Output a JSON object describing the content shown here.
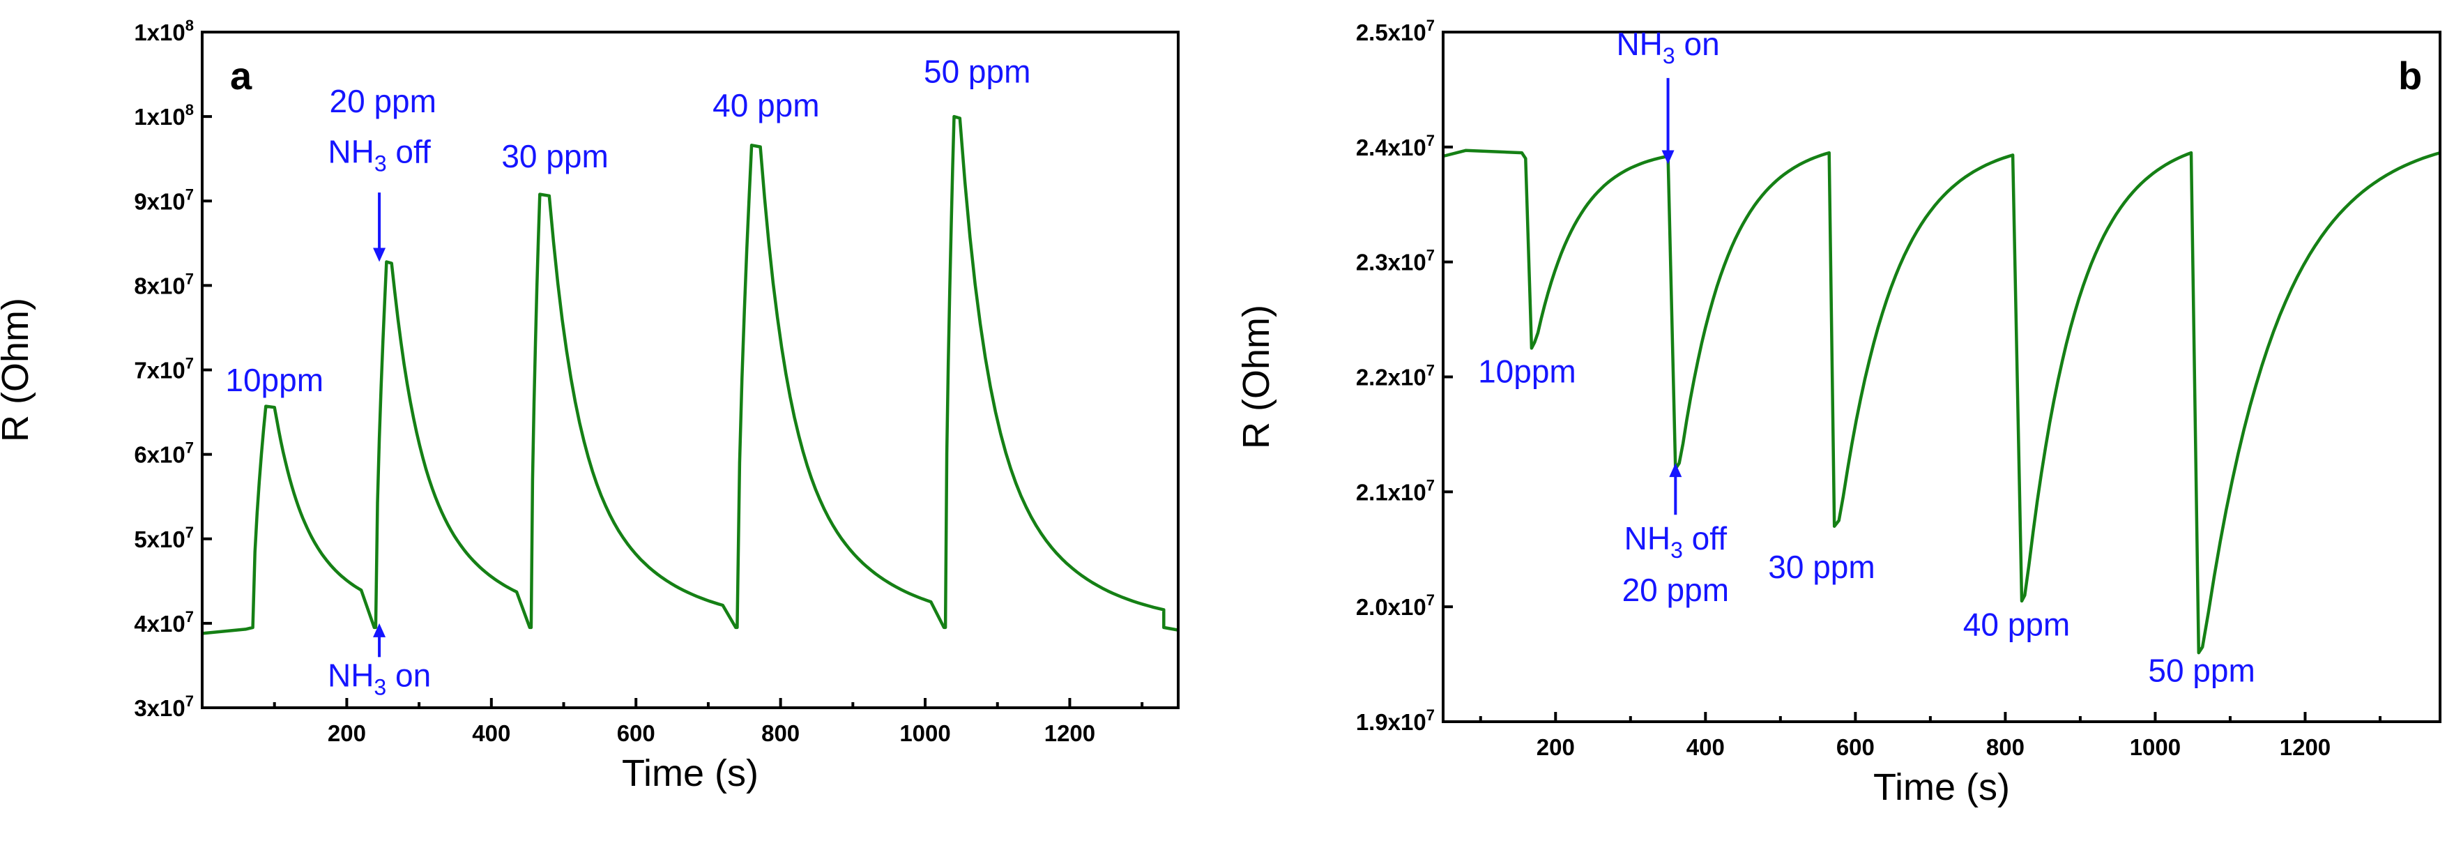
{
  "chart_data": [
    {
      "type": "line",
      "panel": "a",
      "xlabel": "Time (s)",
      "ylabel": "R (Ohm)",
      "xlim": [
        0,
        1350
      ],
      "ylim": [
        30000000,
        110000000
      ],
      "xticks": [
        200,
        400,
        600,
        800,
        1000,
        1200
      ],
      "yticks": [
        {
          "value": 30000000,
          "mant": "3x10",
          "exp": "7"
        },
        {
          "value": 40000000,
          "mant": "4x10",
          "exp": "7"
        },
        {
          "value": 50000000,
          "mant": "5x10",
          "exp": "7"
        },
        {
          "value": 60000000,
          "mant": "6x10",
          "exp": "7"
        },
        {
          "value": 70000000,
          "mant": "7x10",
          "exp": "7"
        },
        {
          "value": 80000000,
          "mant": "8x10",
          "exp": "7"
        },
        {
          "value": 90000000,
          "mant": "9x10",
          "exp": "7"
        },
        {
          "value": 100000000,
          "mant": "1x10",
          "exp": "8"
        },
        {
          "value": 110000000,
          "mant": "1x10",
          "exp": "8"
        }
      ],
      "baseline": 39500000,
      "start_value": 38800000,
      "pulses": [
        {
          "label": "10ppm",
          "on": 70,
          "peak_time": 88,
          "peak": 65700000,
          "off": 100
        },
        {
          "label": "20 ppm",
          "on": 240,
          "peak_time": 255,
          "peak": 82800000,
          "off": 262
        },
        {
          "label": "30 ppm",
          "on": 455,
          "peak_time": 467,
          "peak": 90800000,
          "off": 480
        },
        {
          "label": "40 ppm",
          "on": 740,
          "peak_time": 760,
          "peak": 96600000,
          "off": 772
        },
        {
          "label": "50 ppm",
          "on": 1028,
          "peak_time": 1040,
          "peak": 100000000,
          "off": 1048
        }
      ],
      "annotations": [
        {
          "text": "10ppm",
          "x": 100,
          "y": 67500000
        },
        {
          "text": "20 ppm",
          "x": 250,
          "y": 100500000
        },
        {
          "text": "30 ppm",
          "x": 488,
          "y": 94000000
        },
        {
          "text": "40 ppm",
          "x": 780,
          "y": 100000000
        },
        {
          "text": "50 ppm",
          "x": 1072,
          "y": 104000000
        }
      ],
      "nh3_off": {
        "main": "NH",
        "sub": "3",
        "rest": " off",
        "x": 245,
        "y": 94500000,
        "arrow_from": 91000000,
        "arrow_to": 82800000
      },
      "nh3_on": {
        "main": "NH",
        "sub": "3",
        "rest": " on",
        "x": 245,
        "y": 32500000,
        "arrow_from": 36000000,
        "arrow_to": 40000000
      }
    },
    {
      "type": "line",
      "panel": "b",
      "xlabel": "Time (s)",
      "ylabel": "R (Ohm)",
      "xlim": [
        50,
        1380
      ],
      "ylim": [
        19000000,
        25000000
      ],
      "xticks": [
        200,
        400,
        600,
        800,
        1000,
        1200
      ],
      "yticks": [
        {
          "value": 19000000,
          "mant": "1.9x10",
          "exp": "7"
        },
        {
          "value": 20000000,
          "mant": "2.0x10",
          "exp": "7"
        },
        {
          "value": 21000000,
          "mant": "2.1x10",
          "exp": "7"
        },
        {
          "value": 22000000,
          "mant": "2.2x10",
          "exp": "7"
        },
        {
          "value": 23000000,
          "mant": "2.3x10",
          "exp": "7"
        },
        {
          "value": 24000000,
          "mant": "2.4x10",
          "exp": "7"
        },
        {
          "value": 25000000,
          "mant": "2.5x10",
          "exp": "7"
        }
      ],
      "baseline": 23950000,
      "pulses": [
        {
          "label": "10ppm",
          "on": 160,
          "min_time": 168,
          "min": 22250000,
          "off": 172,
          "recovered": 23900000
        },
        {
          "label": "20 ppm",
          "on": 350,
          "min_time": 360,
          "min": 21200000,
          "off": 365,
          "recovered": 23920000
        },
        {
          "label": "30 ppm",
          "on": 565,
          "min_time": 572,
          "min": 20700000,
          "off": 578,
          "recovered": 23950000
        },
        {
          "label": "40 ppm",
          "on": 810,
          "min_time": 822,
          "min": 20050000,
          "off": 826,
          "recovered": 23930000
        },
        {
          "label": "50 ppm",
          "on": 1048,
          "min_time": 1058,
          "min": 19600000,
          "off": 1063,
          "recovered": 23950000
        }
      ],
      "annotations": [
        {
          "text": "10ppm",
          "x": 162,
          "y": 21950000
        },
        {
          "text": "30 ppm",
          "x": 555,
          "y": 20250000
        },
        {
          "text": "40 ppm",
          "x": 815,
          "y": 19750000
        },
        {
          "text": "50 ppm",
          "x": 1062,
          "y": 19350000
        },
        {
          "text": "20 ppm",
          "x": 360,
          "y": 20050000
        }
      ],
      "nh3_on": {
        "main": "NH",
        "sub": "3",
        "rest": " on",
        "x": 350,
        "y": 24800000,
        "arrow_from": 24600000,
        "arrow_to": 23850000
      },
      "nh3_off": {
        "main": "NH",
        "sub": "3",
        "rest": " off",
        "x": 360,
        "y": 20500000,
        "arrow_from": 20800000,
        "arrow_to": 21250000
      }
    }
  ]
}
